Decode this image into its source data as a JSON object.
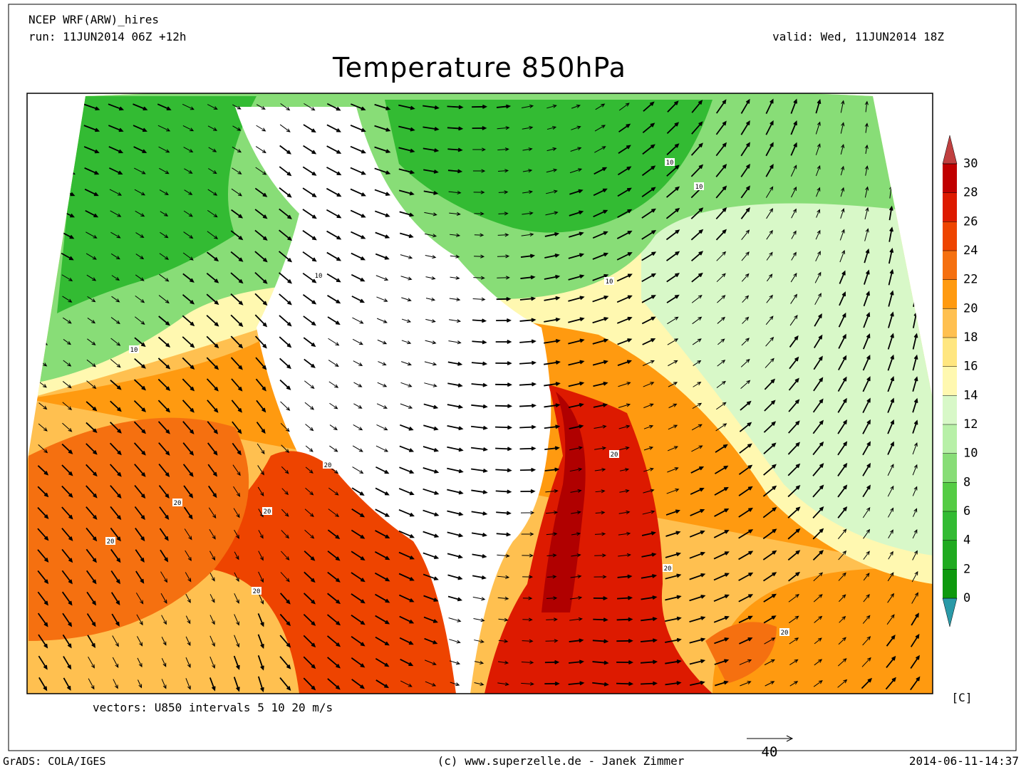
{
  "header": {
    "model": "NCEP WRF(ARW)_hires",
    "run": "run: 11JUN2014 06Z +12h",
    "valid": "valid: Wed, 11JUN2014 18Z",
    "title": "Temperature 850hPa"
  },
  "colorbar": {
    "levels": [
      0,
      2,
      4,
      6,
      8,
      10,
      12,
      14,
      16,
      18,
      20,
      22,
      24,
      26,
      28,
      30
    ],
    "colors": [
      "#2a9aa8",
      "#0e990e",
      "#20aa20",
      "#33bb33",
      "#55cc44",
      "#88dd77",
      "#b8f0a8",
      "#d8f8c8",
      "#fff8b0",
      "#ffe680",
      "#ffc050",
      "#ff9a10",
      "#f57010",
      "#ee4400",
      "#dd1a00",
      "#c00000",
      "#c04040"
    ],
    "unit": "[C]"
  },
  "map": {
    "contour_labels": [
      10,
      10,
      10,
      10,
      10,
      20,
      20,
      20,
      20,
      20,
      20,
      20,
      20
    ]
  },
  "vectors": {
    "caption": "vectors: U850 intervals 5 10 20 m/s",
    "reference": 40
  },
  "footer": {
    "software": "GrADS: COLA/IGES",
    "credit": "(c) www.superzelle.de - Janek Zimmer",
    "timestamp": "2014-06-11-14:37"
  }
}
